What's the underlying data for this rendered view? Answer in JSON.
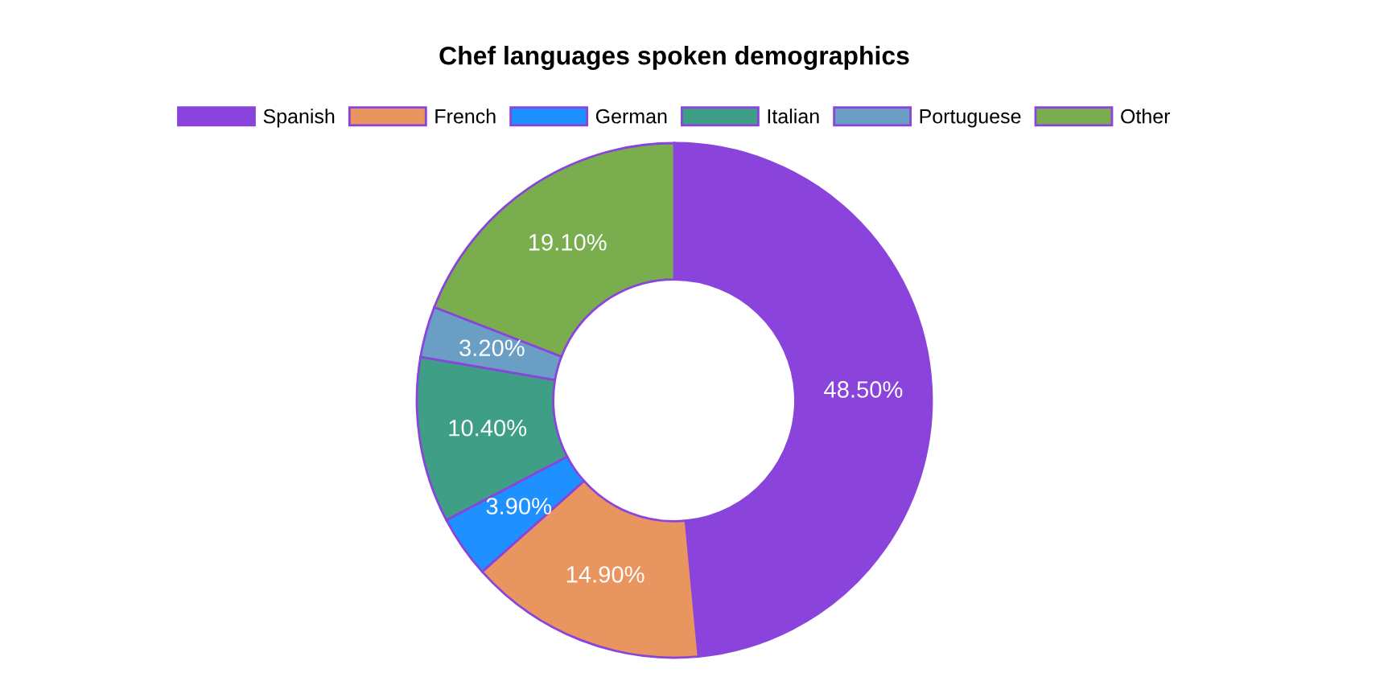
{
  "chart_data": {
    "type": "donut",
    "title": "Chef languages spoken demographics",
    "categories": [
      "Spanish",
      "French",
      "German",
      "Italian",
      "Portuguese",
      "Other"
    ],
    "values": [
      48.5,
      14.9,
      3.9,
      10.4,
      3.2,
      19.1
    ],
    "colors": [
      "#8a44dc",
      "#e9955f",
      "#1e90ff",
      "#3f9f86",
      "#6a9ec5",
      "#79ad4d"
    ],
    "value_labels": [
      "48.50%",
      "14.90%",
      "3.90%",
      "10.40%",
      "3.20%",
      "19.10%"
    ],
    "legend": "top"
  }
}
